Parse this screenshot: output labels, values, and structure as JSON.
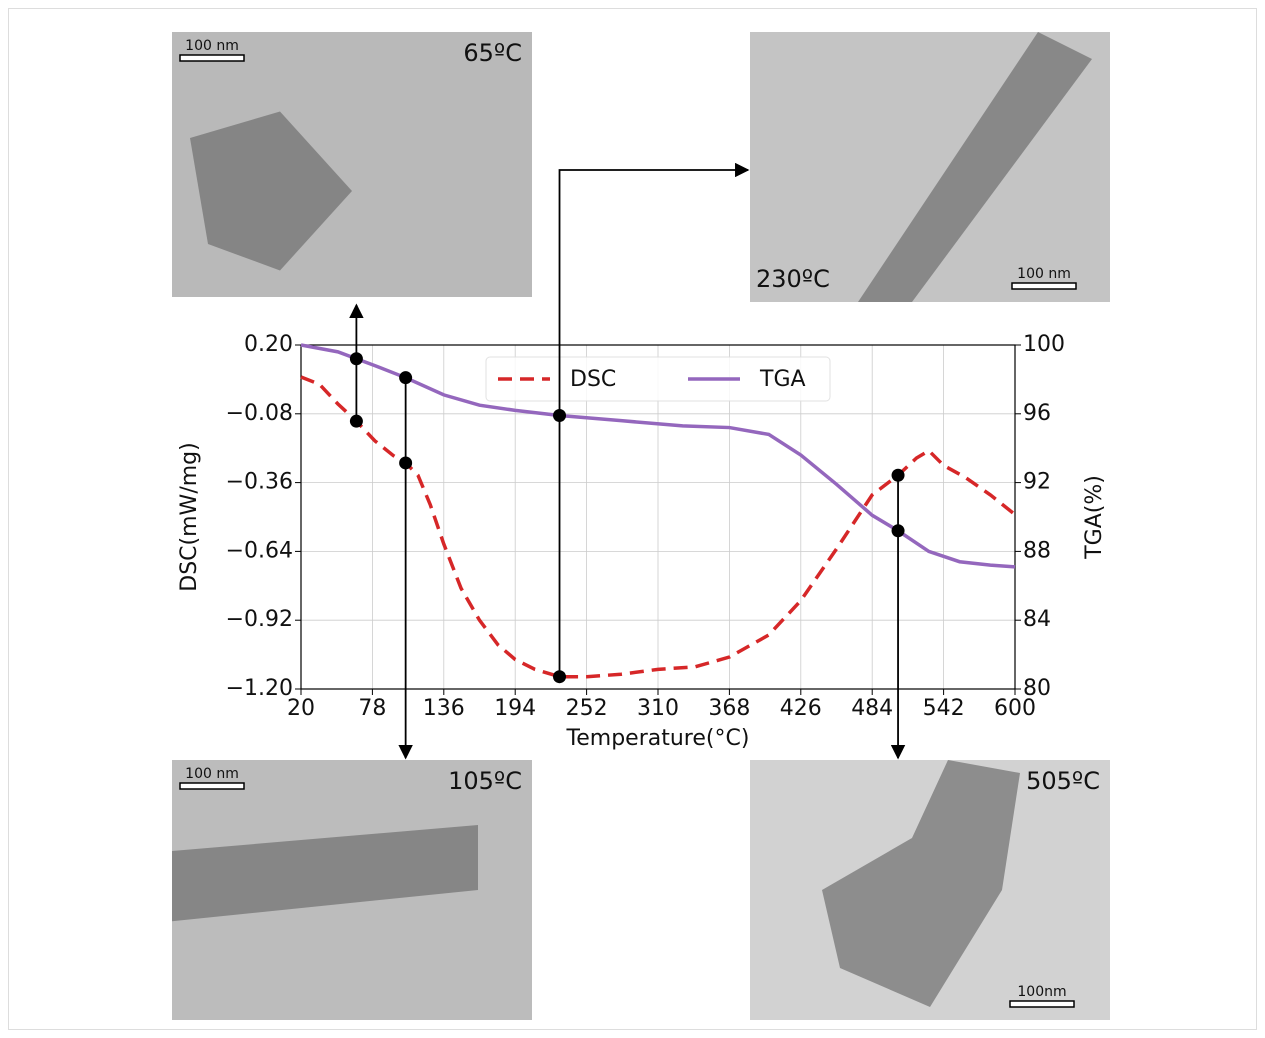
{
  "chart_data": {
    "type": "line",
    "xlabel": "Temperature(°C)",
    "ylabel": "DSC(mW/mg)",
    "y2label": "TGA(%)",
    "xlim": [
      20,
      600
    ],
    "xticks": [
      20,
      78,
      136,
      194,
      252,
      310,
      368,
      426,
      484,
      542,
      600
    ],
    "ylim": [
      -1.2,
      0.2
    ],
    "yticks": [
      {
        "value": 0.2,
        "label": "0.20"
      },
      {
        "value": -0.08,
        "label": "−0.08"
      },
      {
        "value": -0.36,
        "label": "−0.36"
      },
      {
        "value": -0.64,
        "label": "−0.64"
      },
      {
        "value": -0.92,
        "label": "−0.92"
      },
      {
        "value": -1.2,
        "label": "−1.20"
      }
    ],
    "y2lim": [
      80,
      100
    ],
    "y2ticks": [
      80,
      84,
      88,
      92,
      96,
      100
    ],
    "grid": true,
    "legend": "upper center",
    "series": [
      {
        "name": "DSC",
        "color": "#d62728",
        "dashed": true,
        "x": [
          20,
          35,
          50,
          65,
          80,
          95,
          105,
          115,
          125,
          136,
          150,
          165,
          180,
          194,
          210,
          230,
          252,
          280,
          310,
          340,
          368,
          400,
          426,
          455,
          484,
          505,
          520,
          530,
          542,
          560,
          580,
          600
        ],
        "values": [
          0.07,
          0.04,
          -0.04,
          -0.11,
          -0.19,
          -0.25,
          -0.28,
          -0.33,
          -0.45,
          -0.61,
          -0.79,
          -0.92,
          -1.02,
          -1.08,
          -1.12,
          -1.15,
          -1.15,
          -1.14,
          -1.12,
          -1.11,
          -1.07,
          -0.98,
          -0.84,
          -0.63,
          -0.41,
          -0.33,
          -0.26,
          -0.23,
          -0.29,
          -0.34,
          -0.41,
          -0.49
        ]
      },
      {
        "name": "TGA",
        "color": "#9467bd",
        "axis": "y2",
        "x": [
          20,
          50,
          80,
          105,
          136,
          165,
          194,
          230,
          280,
          330,
          368,
          400,
          426,
          455,
          484,
          505,
          530,
          555,
          580,
          600
        ],
        "values": [
          100,
          99.6,
          98.8,
          98.1,
          97.1,
          96.5,
          96.2,
          95.9,
          95.6,
          95.3,
          95.2,
          94.8,
          93.6,
          91.9,
          90.1,
          89.2,
          88.0,
          87.4,
          87.2,
          87.1
        ]
      }
    ],
    "marker_temps": [
      65,
      105,
      230,
      505
    ]
  },
  "images": [
    {
      "label": "65ºC",
      "scale": "100 nm"
    },
    {
      "label": "105ºC",
      "scale": "100 nm"
    },
    {
      "label": "230ºC",
      "scale": "100 nm"
    },
    {
      "label": "505ºC",
      "scale": "100nm"
    }
  ]
}
